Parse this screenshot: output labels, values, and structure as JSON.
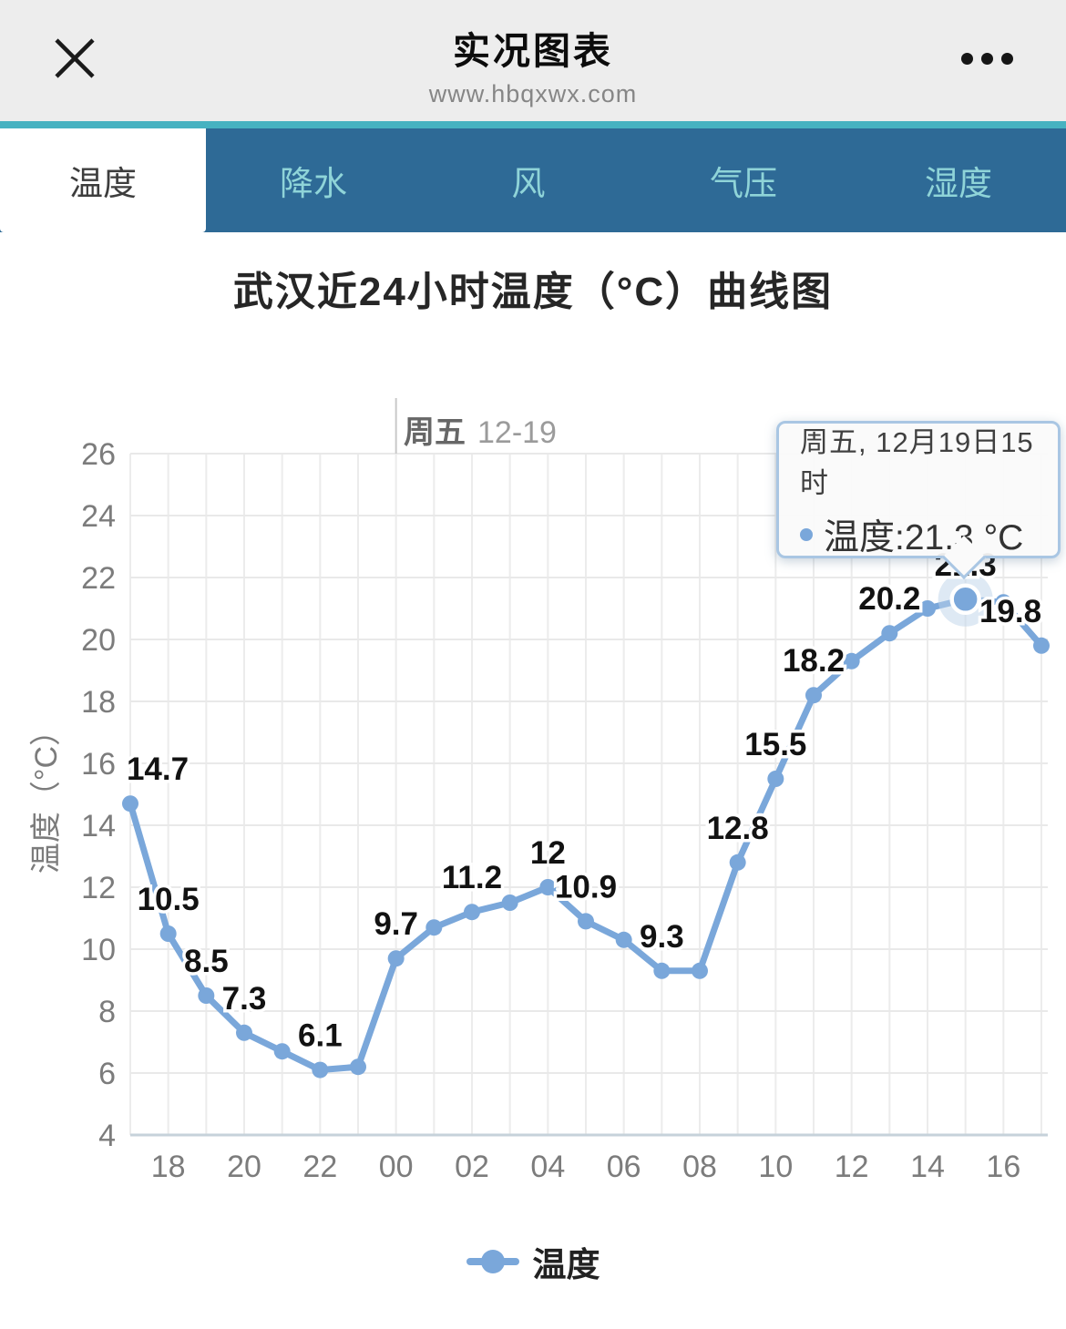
{
  "header": {
    "title": "实况图表",
    "url": "www.hbqxwx.com",
    "close_icon": "close-x",
    "menu_icon": "three-dots"
  },
  "tabs": [
    {
      "label": "温度",
      "active": true
    },
    {
      "label": "降水",
      "active": false
    },
    {
      "label": "风",
      "active": false
    },
    {
      "label": "气压",
      "active": false
    },
    {
      "label": "湿度",
      "active": false
    }
  ],
  "page_title": "武汉近24小时温度（°C）曲线图",
  "theme": {
    "accent_blue": "#7aa7da",
    "tabbar_bg": "#2e6a96",
    "tabbar_strip": "#47b2c1",
    "tab_inactive_text": "#8fd4d8",
    "tooltip_border": "#a9c6e3"
  },
  "chart_data": {
    "type": "line",
    "title": "武汉近24小时温度（°C）曲线图",
    "ylabel": "温度（°C）",
    "ylim": [
      4,
      26
    ],
    "y_ticks": [
      26,
      24,
      22,
      20,
      18,
      16,
      14,
      12,
      10,
      8,
      6,
      4
    ],
    "x_hours": [
      "17",
      "18",
      "19",
      "20",
      "21",
      "22",
      "23",
      "00",
      "01",
      "02",
      "03",
      "04",
      "05",
      "06",
      "07",
      "08",
      "09",
      "10",
      "11",
      "12",
      "13",
      "14",
      "15",
      "16",
      "17"
    ],
    "x_tick_labels": [
      "18",
      "20",
      "22",
      "00",
      "02",
      "04",
      "06",
      "08",
      "10",
      "12",
      "14",
      "16"
    ],
    "grid": true,
    "legend_position": "bottom",
    "day_marker": {
      "dow": "周五",
      "date": "12-19",
      "hour_index": 7
    },
    "series": [
      {
        "name": "温度",
        "color": "#7aa7da",
        "values": [
          14.7,
          10.5,
          8.5,
          7.3,
          6.7,
          6.1,
          6.2,
          9.7,
          10.7,
          11.2,
          11.5,
          12,
          10.9,
          10.3,
          9.3,
          9.3,
          12.8,
          15.5,
          18.2,
          19.3,
          20.2,
          21.0,
          21.3,
          21.2,
          19.8
        ]
      }
    ],
    "point_labels": {
      "0": "14.7",
      "1": "10.5",
      "2": "8.5",
      "3": "7.3",
      "5": "6.1",
      "7": "9.7",
      "9": "11.2",
      "11": "12",
      "12": "10.9",
      "14": "9.3",
      "16": "12.8",
      "17": "15.5",
      "18": "18.2",
      "20": "20.2",
      "22": "21.3",
      "24": "19.8"
    },
    "highlight_index": 22,
    "tooltip": {
      "line1": "周五, 12月19日15时",
      "value_line": "温度:21.3 °C"
    }
  }
}
